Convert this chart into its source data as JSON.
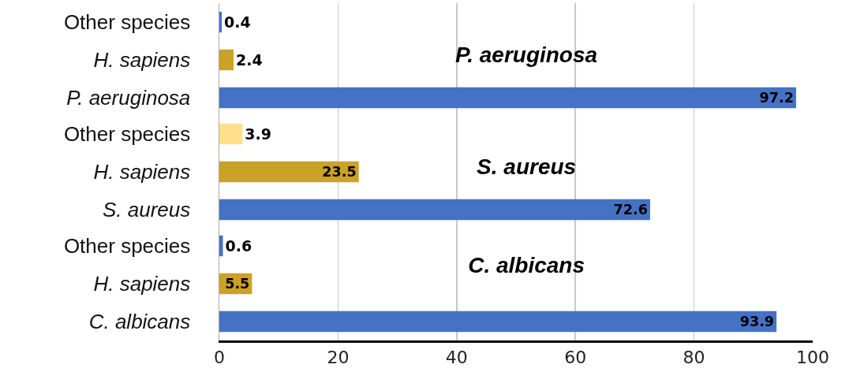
{
  "chart_data": [
    {
      "type": "bar",
      "orientation": "horizontal",
      "title": "P. aeruginosa",
      "categories": [
        "Other species",
        "H. sapiens",
        "P. aeruginosa"
      ],
      "values": [
        0.4,
        2.4,
        97.2
      ],
      "colors": [
        "#4472c4",
        "#c9a227",
        "#4472c4"
      ],
      "data_labels": true,
      "xlim": [
        0,
        100
      ],
      "xticks": [
        0,
        20,
        40,
        60,
        80,
        100
      ],
      "grid": "x",
      "tick_labels": "y"
    },
    {
      "type": "bar",
      "orientation": "horizontal",
      "title": "S. aureus",
      "categories": [
        "Other species",
        "H. sapiens",
        "S. aureus"
      ],
      "values": [
        3.9,
        23.5,
        72.6
      ],
      "colors": [
        "#ffe08a",
        "#c9a227",
        "#4472c4"
      ],
      "data_labels": true,
      "xlim": [
        0,
        100
      ],
      "xticks": [
        0,
        20,
        40,
        60,
        80,
        100
      ],
      "grid": "x",
      "tick_labels": "y"
    },
    {
      "type": "bar",
      "orientation": "horizontal",
      "title": "C. albicans",
      "categories": [
        "Other species",
        "H. sapiens",
        "C. albicans"
      ],
      "values": [
        0.6,
        5.5,
        93.9
      ],
      "colors": [
        "#4472c4",
        "#c9a227",
        "#4472c4"
      ],
      "data_labels": true,
      "xlim": [
        0,
        100
      ],
      "xticks": [
        0,
        20,
        40,
        60,
        80,
        100
      ],
      "grid": "x"
    }
  ]
}
